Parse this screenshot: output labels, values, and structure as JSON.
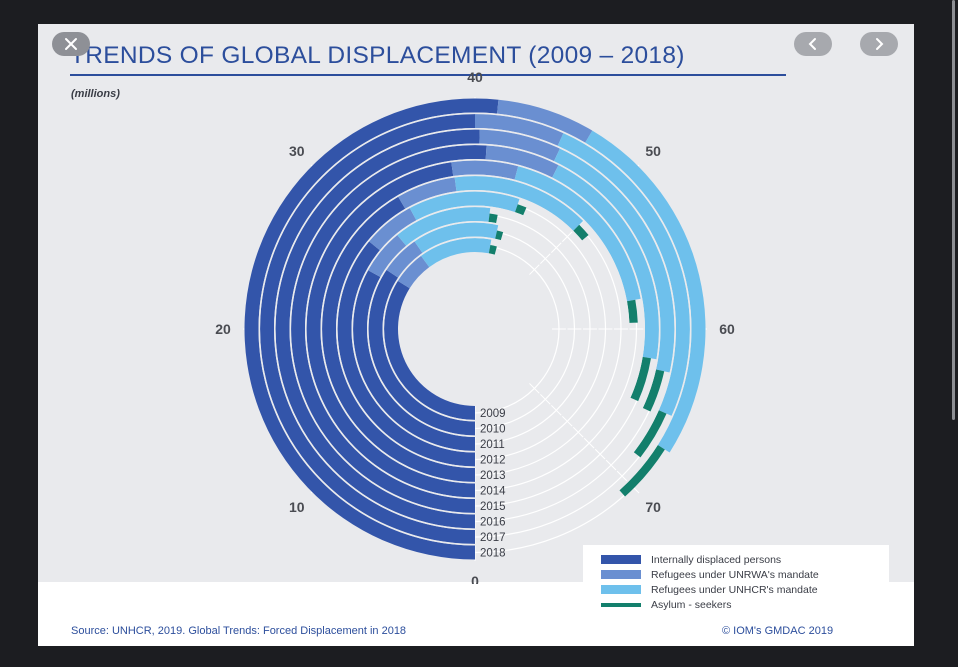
{
  "header": {
    "title": "TRENDS OF GLOBAL DISPLACEMENT (2009 – 2018)",
    "unit": "(millions)"
  },
  "viewer": {
    "close_icon": "close-icon",
    "prev_icon": "chevron-left-icon",
    "next_icon": "chevron-right-icon"
  },
  "legend": {
    "items": [
      {
        "label": "Internally displaced persons",
        "color": "#3355aa"
      },
      {
        "label": "Refugees under UNRWA's mandate",
        "color": "#6a8fd1"
      },
      {
        "label": "Refugees under UNHCR's mandate",
        "color": "#6ec0ec"
      },
      {
        "label": "Asylum - seekers",
        "color": "#137f6c"
      }
    ]
  },
  "footer": {
    "source": "Source: UNHCR, 2019. Global Trends: Forced Displacement in 2018",
    "copyright": "© IOM's GMDAC 2019"
  },
  "chart_data": {
    "type": "radial-stacked-bar",
    "title": "TRENDS OF GLOBAL DISPLACEMENT (2009 – 2018)",
    "unit": "(millions)",
    "scale_range": [
      0,
      80
    ],
    "tick_labels": [
      "0",
      "10",
      "20",
      "30",
      "40",
      "50",
      "60",
      "70"
    ],
    "categories": [
      "2009",
      "2010",
      "2011",
      "2012",
      "2013",
      "2014",
      "2015",
      "2016",
      "2017",
      "2018"
    ],
    "series": [
      {
        "name": "Internally displaced persons",
        "color": "#3355aa",
        "values": [
          27.1,
          27.5,
          26.4,
          28.8,
          33.3,
          38.2,
          40.8,
          40.3,
          40.0,
          41.3
        ]
      },
      {
        "name": "Refugees under UNRWA's mandate",
        "color": "#6a8fd1",
        "values": [
          4.8,
          4.8,
          4.8,
          4.9,
          5.0,
          5.1,
          5.2,
          5.3,
          5.4,
          5.5
        ]
      },
      {
        "name": "Refugees under UNHCR's mandate",
        "color": "#6ec0ec",
        "values": [
          10.4,
          10.5,
          10.4,
          10.5,
          11.7,
          14.4,
          16.1,
          17.2,
          19.9,
          20.4
        ]
      },
      {
        "name": "Asylum - seekers",
        "color": "#137f6c",
        "values": [
          1.0,
          0.8,
          0.9,
          0.9,
          1.2,
          1.8,
          3.2,
          2.8,
          3.1,
          3.5
        ]
      }
    ]
  }
}
